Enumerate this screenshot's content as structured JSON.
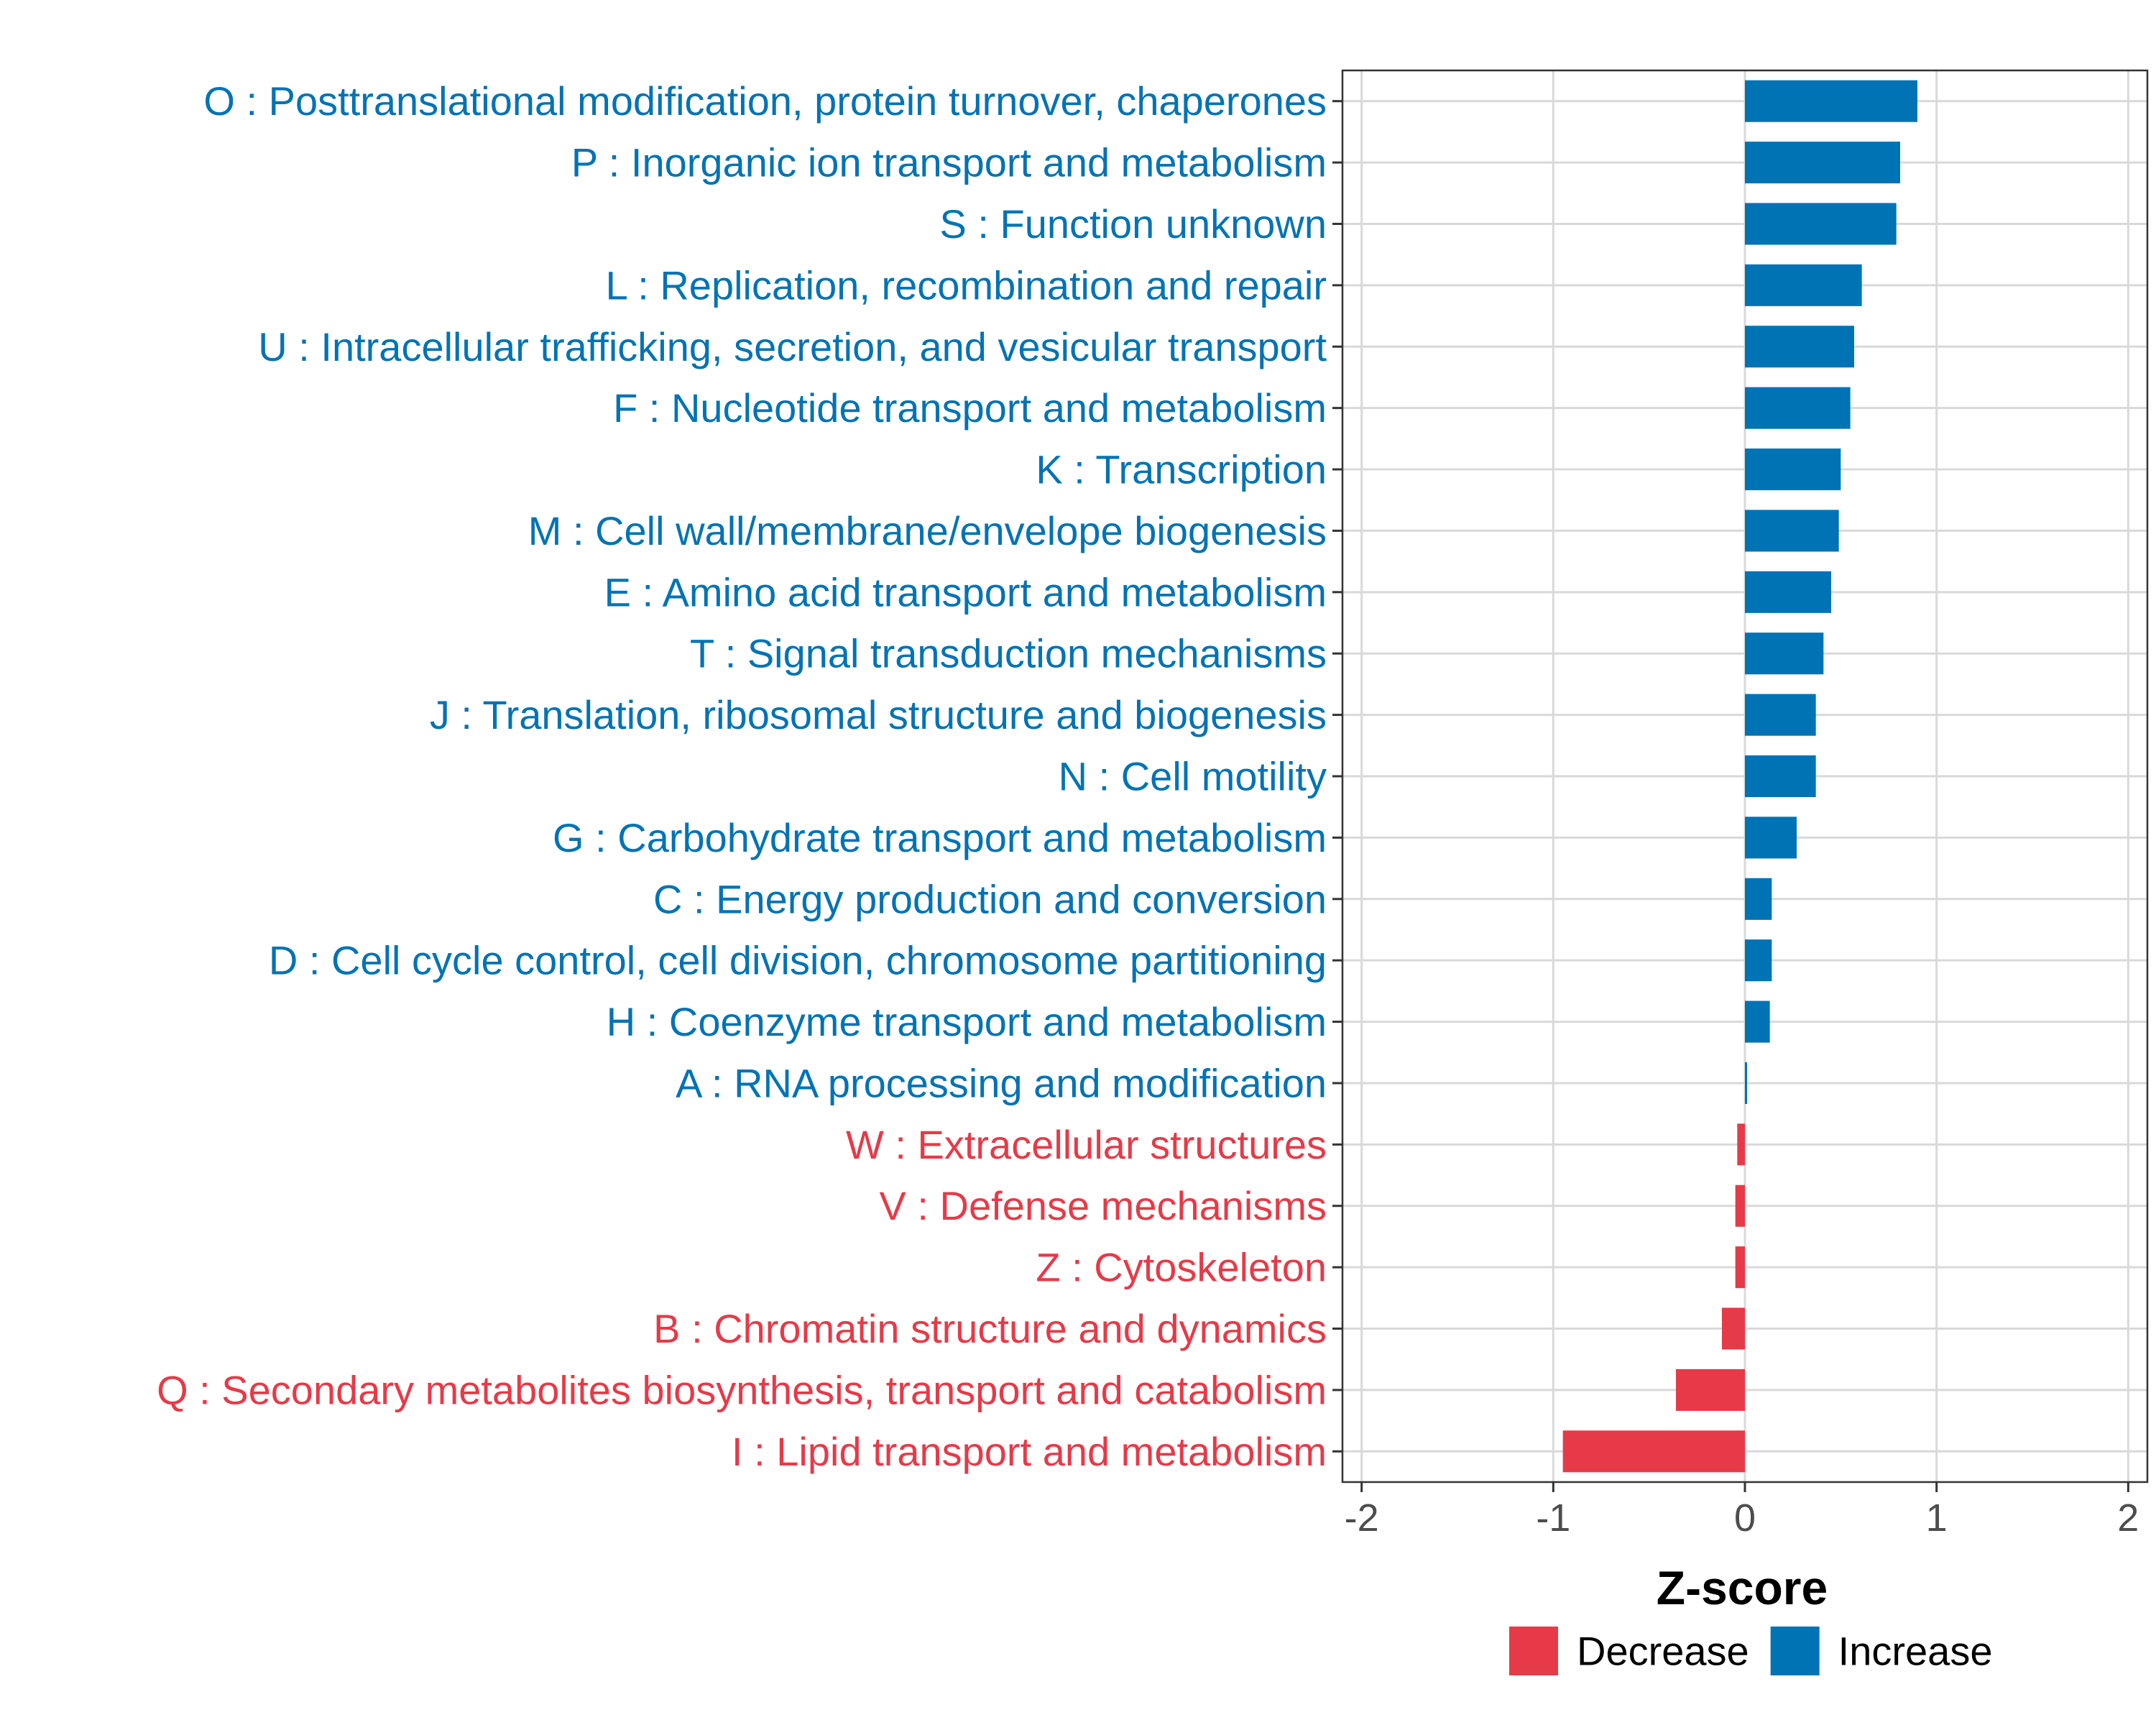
{
  "chart_data": {
    "type": "bar",
    "orientation": "horizontal",
    "xlabel": "Z-score",
    "xlim": [
      -2.1,
      2.1
    ],
    "xticks": [
      -2,
      -1,
      0,
      1,
      2
    ],
    "xtick_labels": [
      "-2",
      "-1",
      "0",
      "1",
      "2"
    ],
    "grid": true,
    "legend_position": "bottom",
    "colors": {
      "Increase": "#0073B5",
      "Decrease": "#E63A48"
    },
    "legend": [
      {
        "name": "Decrease",
        "color": "#E63A48"
      },
      {
        "name": "Increase",
        "color": "#0073B5"
      }
    ],
    "categories": [
      "O : Posttranslational modification, protein turnover, chaperones",
      "P : Inorganic ion transport and metabolism",
      "S : Function unknown",
      "L : Replication, recombination and repair",
      "U : Intracellular trafficking, secretion, and vesicular transport",
      "F : Nucleotide transport and metabolism",
      "K : Transcription",
      "M : Cell wall/membrane/envelope biogenesis",
      "E : Amino acid transport and metabolism",
      "T : Signal transduction mechanisms",
      "J : Translation, ribosomal structure and biogenesis",
      "N : Cell motility",
      "G : Carbohydrate transport and metabolism",
      "C : Energy production and conversion",
      "D : Cell cycle control, cell division, chromosome partitioning",
      "H : Coenzyme transport and metabolism",
      "A : RNA processing and modification",
      "W : Extracellular structures",
      "V : Defense mechanisms",
      "Z : Cytoskeleton",
      "B : Chromatin structure and dynamics",
      "Q : Secondary metabolites biosynthesis, transport and catabolism",
      "I : Lipid transport and metabolism"
    ],
    "values": [
      0.9,
      0.81,
      0.79,
      0.61,
      0.57,
      0.55,
      0.5,
      0.49,
      0.45,
      0.41,
      0.37,
      0.37,
      0.27,
      0.14,
      0.14,
      0.13,
      0.01,
      -0.04,
      -0.05,
      -0.05,
      -0.12,
      -0.36,
      -0.95
    ],
    "direction": [
      "Increase",
      "Increase",
      "Increase",
      "Increase",
      "Increase",
      "Increase",
      "Increase",
      "Increase",
      "Increase",
      "Increase",
      "Increase",
      "Increase",
      "Increase",
      "Increase",
      "Increase",
      "Increase",
      "Increase",
      "Decrease",
      "Decrease",
      "Decrease",
      "Decrease",
      "Decrease",
      "Decrease"
    ]
  }
}
